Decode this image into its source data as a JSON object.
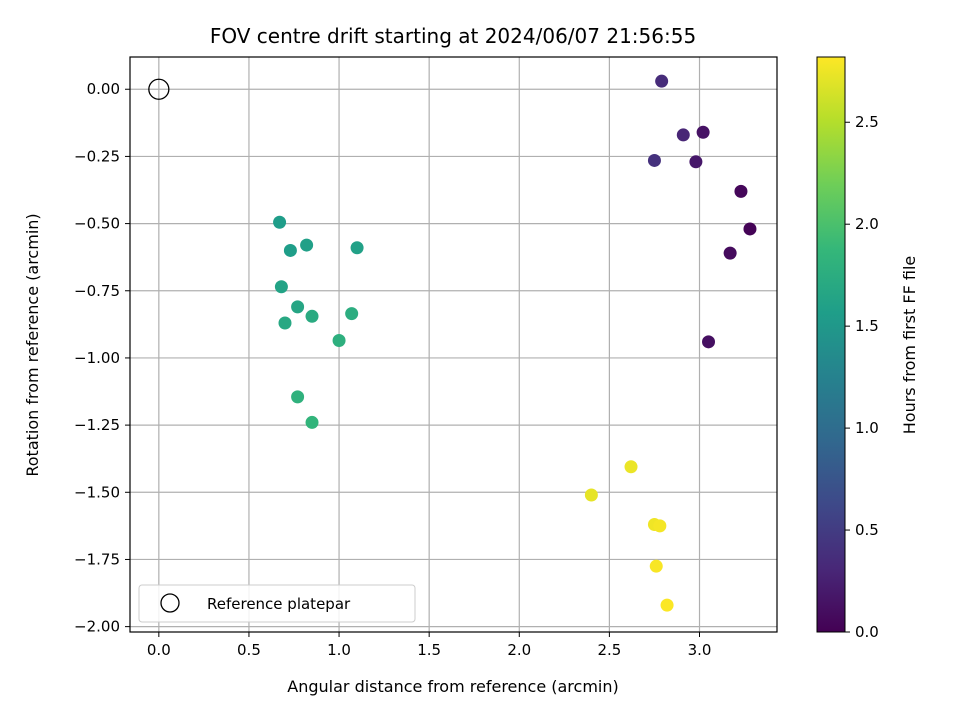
{
  "chart_data": {
    "type": "scatter",
    "title": "FOV centre drift starting at 2024/06/07 21:56:55",
    "xlabel": "Angular distance from reference (arcmin)",
    "ylabel": "Rotation from reference (arcmin)",
    "xlim": [
      -0.16,
      3.43
    ],
    "ylim": [
      -2.02,
      0.12
    ],
    "xticks": [
      0.0,
      0.5,
      1.0,
      1.5,
      2.0,
      2.5,
      3.0
    ],
    "xtick_labels": [
      "0.0",
      "0.5",
      "1.0",
      "1.5",
      "2.0",
      "2.5",
      "3.0"
    ],
    "yticks": [
      0.0,
      -0.25,
      -0.5,
      -0.75,
      -1.0,
      -1.25,
      -1.5,
      -1.75,
      -2.0
    ],
    "ytick_labels": [
      "0.00",
      "−0.25",
      "−0.50",
      "−0.75",
      "−1.00",
      "−1.25",
      "−1.50",
      "−1.75",
      "−2.00"
    ],
    "grid": true,
    "colormap": "viridis",
    "colormap_stops": [
      "#440154",
      "#482878",
      "#3e4989",
      "#31688e",
      "#26828e",
      "#1f9e89",
      "#35b779",
      "#6ece58",
      "#b5de2b",
      "#fde725"
    ],
    "colorbar": {
      "label": "Hours from first FF file",
      "range": [
        0.0,
        2.82
      ],
      "ticks": [
        0.0,
        0.5,
        1.0,
        1.5,
        2.0,
        2.5
      ],
      "tick_labels": [
        "0.0",
        "0.5",
        "1.0",
        "1.5",
        "2.0",
        "2.5"
      ]
    },
    "reference": {
      "x": 0.0,
      "y": 0.0,
      "label": "Reference platepar"
    },
    "legend": {
      "position": "lower-left",
      "entries": [
        "Reference platepar"
      ]
    },
    "points": [
      {
        "x": 3.28,
        "y": -0.52,
        "hours": 0.02
      },
      {
        "x": 3.23,
        "y": -0.38,
        "hours": 0.05
      },
      {
        "x": 3.17,
        "y": -0.61,
        "hours": 0.08
      },
      {
        "x": 3.05,
        "y": -0.94,
        "hours": 0.11
      },
      {
        "x": 3.02,
        "y": -0.16,
        "hours": 0.14
      },
      {
        "x": 2.98,
        "y": -0.27,
        "hours": 0.18
      },
      {
        "x": 2.91,
        "y": -0.17,
        "hours": 0.3
      },
      {
        "x": 2.79,
        "y": 0.03,
        "hours": 0.35
      },
      {
        "x": 2.75,
        "y": -0.265,
        "hours": 0.4
      },
      {
        "x": 0.67,
        "y": -0.495,
        "hours": 1.55
      },
      {
        "x": 0.73,
        "y": -0.6,
        "hours": 1.57
      },
      {
        "x": 0.82,
        "y": -0.58,
        "hours": 1.59
      },
      {
        "x": 1.1,
        "y": -0.59,
        "hours": 1.61
      },
      {
        "x": 0.68,
        "y": -0.735,
        "hours": 1.63
      },
      {
        "x": 0.77,
        "y": -0.81,
        "hours": 1.66
      },
      {
        "x": 0.7,
        "y": -0.87,
        "hours": 1.69
      },
      {
        "x": 0.85,
        "y": -0.845,
        "hours": 1.72
      },
      {
        "x": 1.07,
        "y": -0.835,
        "hours": 1.75
      },
      {
        "x": 1.0,
        "y": -0.935,
        "hours": 1.78
      },
      {
        "x": 0.77,
        "y": -1.145,
        "hours": 1.81
      },
      {
        "x": 0.85,
        "y": -1.24,
        "hours": 1.84
      },
      {
        "x": 2.4,
        "y": -1.51,
        "hours": 2.72
      },
      {
        "x": 2.62,
        "y": -1.405,
        "hours": 2.74
      },
      {
        "x": 2.75,
        "y": -1.62,
        "hours": 2.76
      },
      {
        "x": 2.78,
        "y": -1.625,
        "hours": 2.78
      },
      {
        "x": 2.76,
        "y": -1.775,
        "hours": 2.8
      },
      {
        "x": 2.82,
        "y": -1.92,
        "hours": 2.81
      }
    ]
  }
}
